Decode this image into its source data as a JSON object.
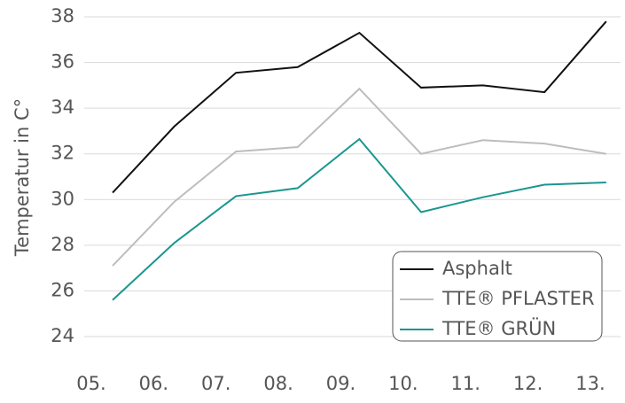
{
  "chart_data": {
    "type": "line",
    "y_label": "Temperatur in C°",
    "categories": [
      "05.",
      "06.",
      "07.",
      "08.",
      "09.",
      "10.",
      "11.",
      "12.",
      "13."
    ],
    "series": [
      {
        "name": "Asphalt",
        "color": "#111111",
        "values": [
          30.3,
          33.2,
          35.55,
          35.8,
          37.3,
          34.9,
          35.0,
          34.7,
          37.8
        ]
      },
      {
        "name": "TTE® PFLASTER",
        "color": "#bdbdbd",
        "values": [
          27.1,
          29.9,
          32.1,
          32.3,
          34.85,
          32.0,
          32.6,
          32.45,
          32.0
        ]
      },
      {
        "name": "TTE® GRÜN",
        "color": "#1a9690",
        "values": [
          25.6,
          28.1,
          30.15,
          30.5,
          32.65,
          29.45,
          30.1,
          30.65,
          30.75
        ]
      }
    ],
    "ylim": [
      24,
      38
    ],
    "yticks": [
      24,
      26,
      28,
      30,
      32,
      34,
      36,
      38
    ],
    "grid": true,
    "legend": "lower right"
  }
}
